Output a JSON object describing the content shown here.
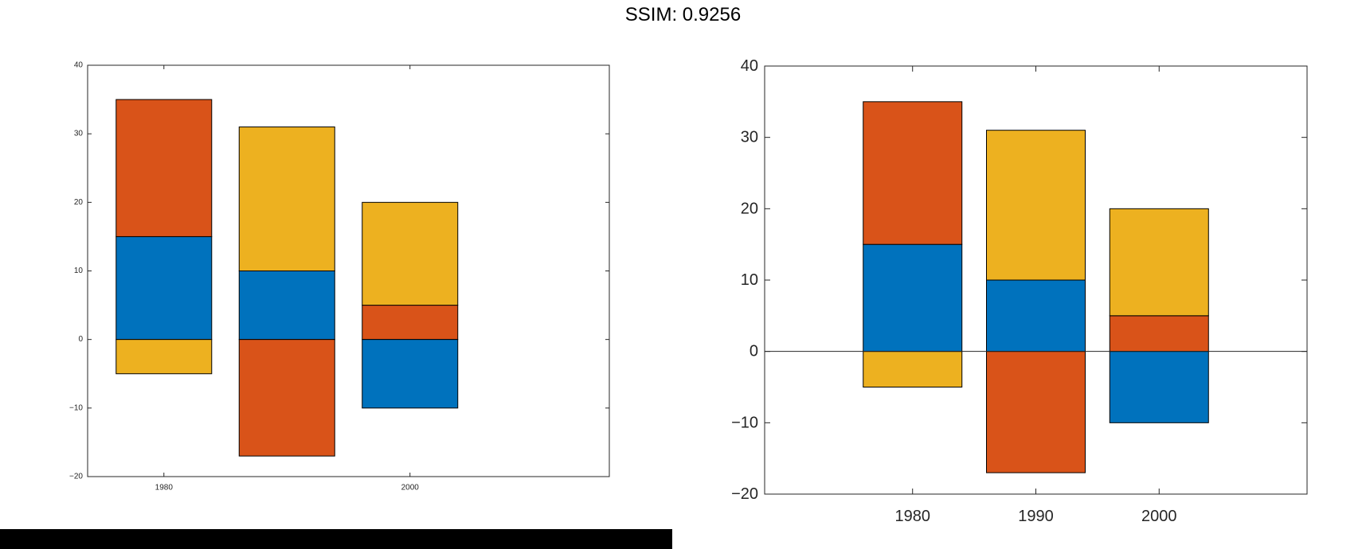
{
  "title": "SSIM: 0.9256",
  "colors": {
    "c1": "#0072BD",
    "c2": "#D95319",
    "c3": "#EDB120"
  },
  "chart_data": [
    {
      "type": "bar",
      "stacked": true,
      "x": [
        1980,
        1990,
        2000
      ],
      "xticks": [
        1980,
        2000
      ],
      "yticks": [
        -20,
        -10,
        0,
        10,
        20,
        30,
        40
      ],
      "xlim": [
        1973.8,
        2016.2
      ],
      "ylim": [
        -20,
        40
      ],
      "grid": false,
      "baseline": false,
      "segments": [
        [
          {
            "from": 0,
            "to": 15,
            "color": "#0072BD"
          },
          {
            "from": 15,
            "to": 35,
            "color": "#D95319"
          },
          {
            "from": 0,
            "to": -5,
            "color": "#EDB120"
          }
        ],
        [
          {
            "from": 0,
            "to": 10,
            "color": "#0072BD"
          },
          {
            "from": 10,
            "to": 31,
            "color": "#EDB120"
          },
          {
            "from": 0,
            "to": -17,
            "color": "#D95319"
          }
        ],
        [
          {
            "from": 0,
            "to": 5,
            "color": "#D95319"
          },
          {
            "from": 5,
            "to": 20,
            "color": "#EDB120"
          },
          {
            "from": 0,
            "to": -10,
            "color": "#0072BD"
          }
        ]
      ]
    },
    {
      "type": "bar",
      "stacked": true,
      "x": [
        1980,
        1990,
        2000
      ],
      "xticks": [
        1980,
        1990,
        2000
      ],
      "yticks": [
        -20,
        -10,
        0,
        10,
        20,
        30,
        40
      ],
      "xlim": [
        1968,
        2012
      ],
      "ylim": [
        -20,
        40
      ],
      "grid": false,
      "baseline": true,
      "segments": [
        [
          {
            "from": 0,
            "to": 15,
            "color": "#0072BD"
          },
          {
            "from": 15,
            "to": 35,
            "color": "#D95319"
          },
          {
            "from": 0,
            "to": -5,
            "color": "#EDB120"
          }
        ],
        [
          {
            "from": 0,
            "to": 10,
            "color": "#0072BD"
          },
          {
            "from": 10,
            "to": 31,
            "color": "#EDB120"
          },
          {
            "from": 0,
            "to": -17,
            "color": "#D95319"
          }
        ],
        [
          {
            "from": 0,
            "to": 5,
            "color": "#D95319"
          },
          {
            "from": 5,
            "to": 20,
            "color": "#EDB120"
          },
          {
            "from": 0,
            "to": -10,
            "color": "#0072BD"
          }
        ]
      ]
    }
  ]
}
